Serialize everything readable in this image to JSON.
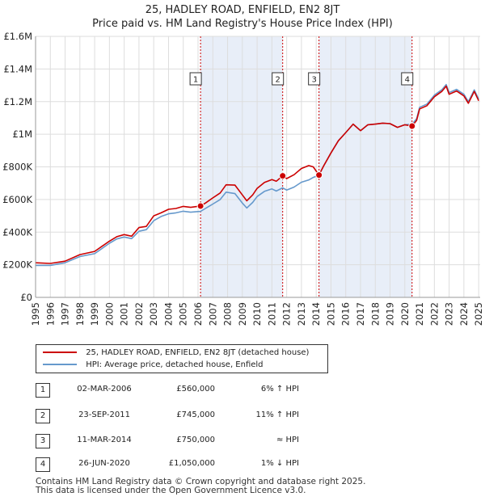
{
  "title_line1": "25, HADLEY ROAD, ENFIELD, EN2 8JT",
  "title_line2": "Price paid vs. HM Land Registry's House Price Index (HPI)",
  "chart_data": {
    "type": "line",
    "title": "25, HADLEY ROAD, ENFIELD, EN2 8JT — Price paid vs. HM Land Registry's House Price Index (HPI)",
    "xlabel": "",
    "ylabel": "",
    "xlim": [
      1995,
      2025.1
    ],
    "ylim": [
      0,
      1600000
    ],
    "y_ticks": [
      {
        "value": 0,
        "label": "£0"
      },
      {
        "value": 200000,
        "label": "£200K"
      },
      {
        "value": 400000,
        "label": "£400K"
      },
      {
        "value": 600000,
        "label": "£600K"
      },
      {
        "value": 800000,
        "label": "£800K"
      },
      {
        "value": 1000000,
        "label": "£1M"
      },
      {
        "value": 1200000,
        "label": "£1.2M"
      },
      {
        "value": 1400000,
        "label": "£1.4M"
      },
      {
        "value": 1600000,
        "label": "£1.6M"
      }
    ],
    "x_ticks": [
      "1995",
      "1996",
      "1997",
      "1998",
      "1999",
      "2000",
      "2001",
      "2002",
      "2003",
      "2004",
      "2005",
      "2006",
      "2007",
      "2008",
      "2009",
      "2010",
      "2011",
      "2012",
      "2013",
      "2014",
      "2015",
      "2016",
      "2017",
      "2018",
      "2019",
      "2020",
      "2021",
      "2022",
      "2023",
      "2024",
      "2025"
    ],
    "shaded_ranges": [
      [
        2006.17,
        2011.73
      ],
      [
        2014.19,
        2020.49
      ]
    ],
    "series": [
      {
        "name": "25, HADLEY ROAD, ENFIELD, EN2 8JT (detached house)",
        "color": "#cc0000",
        "points": [
          [
            1995.0,
            212000
          ],
          [
            1996.0,
            208000
          ],
          [
            1997.0,
            222000
          ],
          [
            1998.0,
            262000
          ],
          [
            1999.0,
            282000
          ],
          [
            2000.0,
            345000
          ],
          [
            2000.5,
            372000
          ],
          [
            2001.0,
            385000
          ],
          [
            2001.5,
            375000
          ],
          [
            2002.0,
            428000
          ],
          [
            2002.5,
            435000
          ],
          [
            2003.0,
            500000
          ],
          [
            2003.5,
            518000
          ],
          [
            2004.0,
            540000
          ],
          [
            2004.5,
            545000
          ],
          [
            2005.0,
            558000
          ],
          [
            2005.5,
            552000
          ],
          [
            2006.17,
            560000
          ],
          [
            2006.5,
            578000
          ],
          [
            2007.0,
            610000
          ],
          [
            2007.5,
            640000
          ],
          [
            2007.9,
            690000
          ],
          [
            2008.5,
            688000
          ],
          [
            2009.0,
            628000
          ],
          [
            2009.3,
            592000
          ],
          [
            2009.7,
            628000
          ],
          [
            2010.0,
            668000
          ],
          [
            2010.5,
            705000
          ],
          [
            2011.0,
            722000
          ],
          [
            2011.3,
            712000
          ],
          [
            2011.73,
            745000
          ],
          [
            2012.0,
            728000
          ],
          [
            2012.5,
            752000
          ],
          [
            2013.0,
            790000
          ],
          [
            2013.5,
            808000
          ],
          [
            2013.8,
            800000
          ],
          [
            2014.19,
            750000
          ],
          [
            2014.5,
            805000
          ],
          [
            2015.0,
            885000
          ],
          [
            2015.5,
            960000
          ],
          [
            2016.0,
            1010000
          ],
          [
            2016.5,
            1062000
          ],
          [
            2017.0,
            1022000
          ],
          [
            2017.5,
            1058000
          ],
          [
            2018.0,
            1062000
          ],
          [
            2018.5,
            1068000
          ],
          [
            2019.0,
            1065000
          ],
          [
            2019.5,
            1042000
          ],
          [
            2020.0,
            1058000
          ],
          [
            2020.49,
            1050000
          ],
          [
            2020.8,
            1085000
          ],
          [
            2021.0,
            1155000
          ],
          [
            2021.5,
            1175000
          ],
          [
            2022.0,
            1230000
          ],
          [
            2022.5,
            1262000
          ],
          [
            2022.8,
            1295000
          ],
          [
            2023.0,
            1245000
          ],
          [
            2023.5,
            1265000
          ],
          [
            2024.0,
            1235000
          ],
          [
            2024.3,
            1190000
          ],
          [
            2024.7,
            1262000
          ],
          [
            2025.0,
            1205000
          ]
        ]
      },
      {
        "name": "HPI: Average price, detached house, Enfield",
        "color": "#6699cc",
        "points": [
          [
            1995.0,
            196000
          ],
          [
            1996.0,
            196000
          ],
          [
            1997.0,
            212000
          ],
          [
            1998.0,
            250000
          ],
          [
            1999.0,
            268000
          ],
          [
            2000.0,
            332000
          ],
          [
            2000.5,
            358000
          ],
          [
            2001.0,
            370000
          ],
          [
            2001.5,
            360000
          ],
          [
            2002.0,
            405000
          ],
          [
            2002.5,
            415000
          ],
          [
            2003.0,
            470000
          ],
          [
            2003.5,
            496000
          ],
          [
            2004.0,
            512000
          ],
          [
            2004.5,
            518000
          ],
          [
            2005.0,
            528000
          ],
          [
            2005.5,
            522000
          ],
          [
            2006.17,
            527000
          ],
          [
            2006.5,
            545000
          ],
          [
            2007.0,
            572000
          ],
          [
            2007.5,
            600000
          ],
          [
            2007.9,
            645000
          ],
          [
            2008.5,
            636000
          ],
          [
            2009.0,
            578000
          ],
          [
            2009.3,
            548000
          ],
          [
            2009.7,
            582000
          ],
          [
            2010.0,
            618000
          ],
          [
            2010.5,
            650000
          ],
          [
            2011.0,
            665000
          ],
          [
            2011.3,
            652000
          ],
          [
            2011.73,
            671000
          ],
          [
            2012.0,
            658000
          ],
          [
            2012.5,
            676000
          ],
          [
            2013.0,
            706000
          ],
          [
            2013.5,
            720000
          ],
          [
            2013.8,
            735000
          ],
          [
            2014.19,
            750000
          ],
          [
            2014.5,
            805000
          ],
          [
            2015.0,
            885000
          ],
          [
            2015.5,
            960000
          ],
          [
            2016.0,
            1010000
          ],
          [
            2016.5,
            1062000
          ],
          [
            2017.0,
            1022000
          ],
          [
            2017.5,
            1058000
          ],
          [
            2018.0,
            1062000
          ],
          [
            2018.5,
            1068000
          ],
          [
            2019.0,
            1065000
          ],
          [
            2019.5,
            1042000
          ],
          [
            2020.0,
            1058000
          ],
          [
            2020.49,
            1062000
          ],
          [
            2020.8,
            1095000
          ],
          [
            2021.0,
            1165000
          ],
          [
            2021.5,
            1185000
          ],
          [
            2022.0,
            1240000
          ],
          [
            2022.5,
            1272000
          ],
          [
            2022.8,
            1305000
          ],
          [
            2023.0,
            1255000
          ],
          [
            2023.5,
            1275000
          ],
          [
            2024.0,
            1245000
          ],
          [
            2024.3,
            1200000
          ],
          [
            2024.7,
            1272000
          ],
          [
            2025.0,
            1215000
          ]
        ]
      }
    ],
    "markers": [
      {
        "num": "1",
        "x": 2006.17,
        "y": 560000
      },
      {
        "num": "2",
        "x": 2011.73,
        "y": 745000
      },
      {
        "num": "3",
        "x": 2014.19,
        "y": 750000
      },
      {
        "num": "4",
        "x": 2020.49,
        "y": 1050000
      }
    ],
    "colors": {
      "shade": "#e8eef8",
      "grid": "#dddddd",
      "vline": "#cc0000"
    }
  },
  "legend": {
    "items": [
      {
        "label": "25, HADLEY ROAD, ENFIELD, EN2 8JT (detached house)",
        "color": "#cc0000"
      },
      {
        "label": "HPI: Average price, detached house, Enfield",
        "color": "#6699cc"
      }
    ]
  },
  "sales": [
    {
      "num": "1",
      "date": "02-MAR-2006",
      "price": "£560,000",
      "hpi": "6% ↑ HPI"
    },
    {
      "num": "2",
      "date": "23-SEP-2011",
      "price": "£745,000",
      "hpi": "11% ↑ HPI"
    },
    {
      "num": "3",
      "date": "11-MAR-2014",
      "price": "£750,000",
      "hpi": "≈ HPI"
    },
    {
      "num": "4",
      "date": "26-JUN-2020",
      "price": "£1,050,000",
      "hpi": "1% ↓ HPI"
    }
  ],
  "footer": {
    "line1": "Contains HM Land Registry data © Crown copyright and database right 2025.",
    "line2": "This data is licensed under the Open Government Licence v3.0."
  }
}
